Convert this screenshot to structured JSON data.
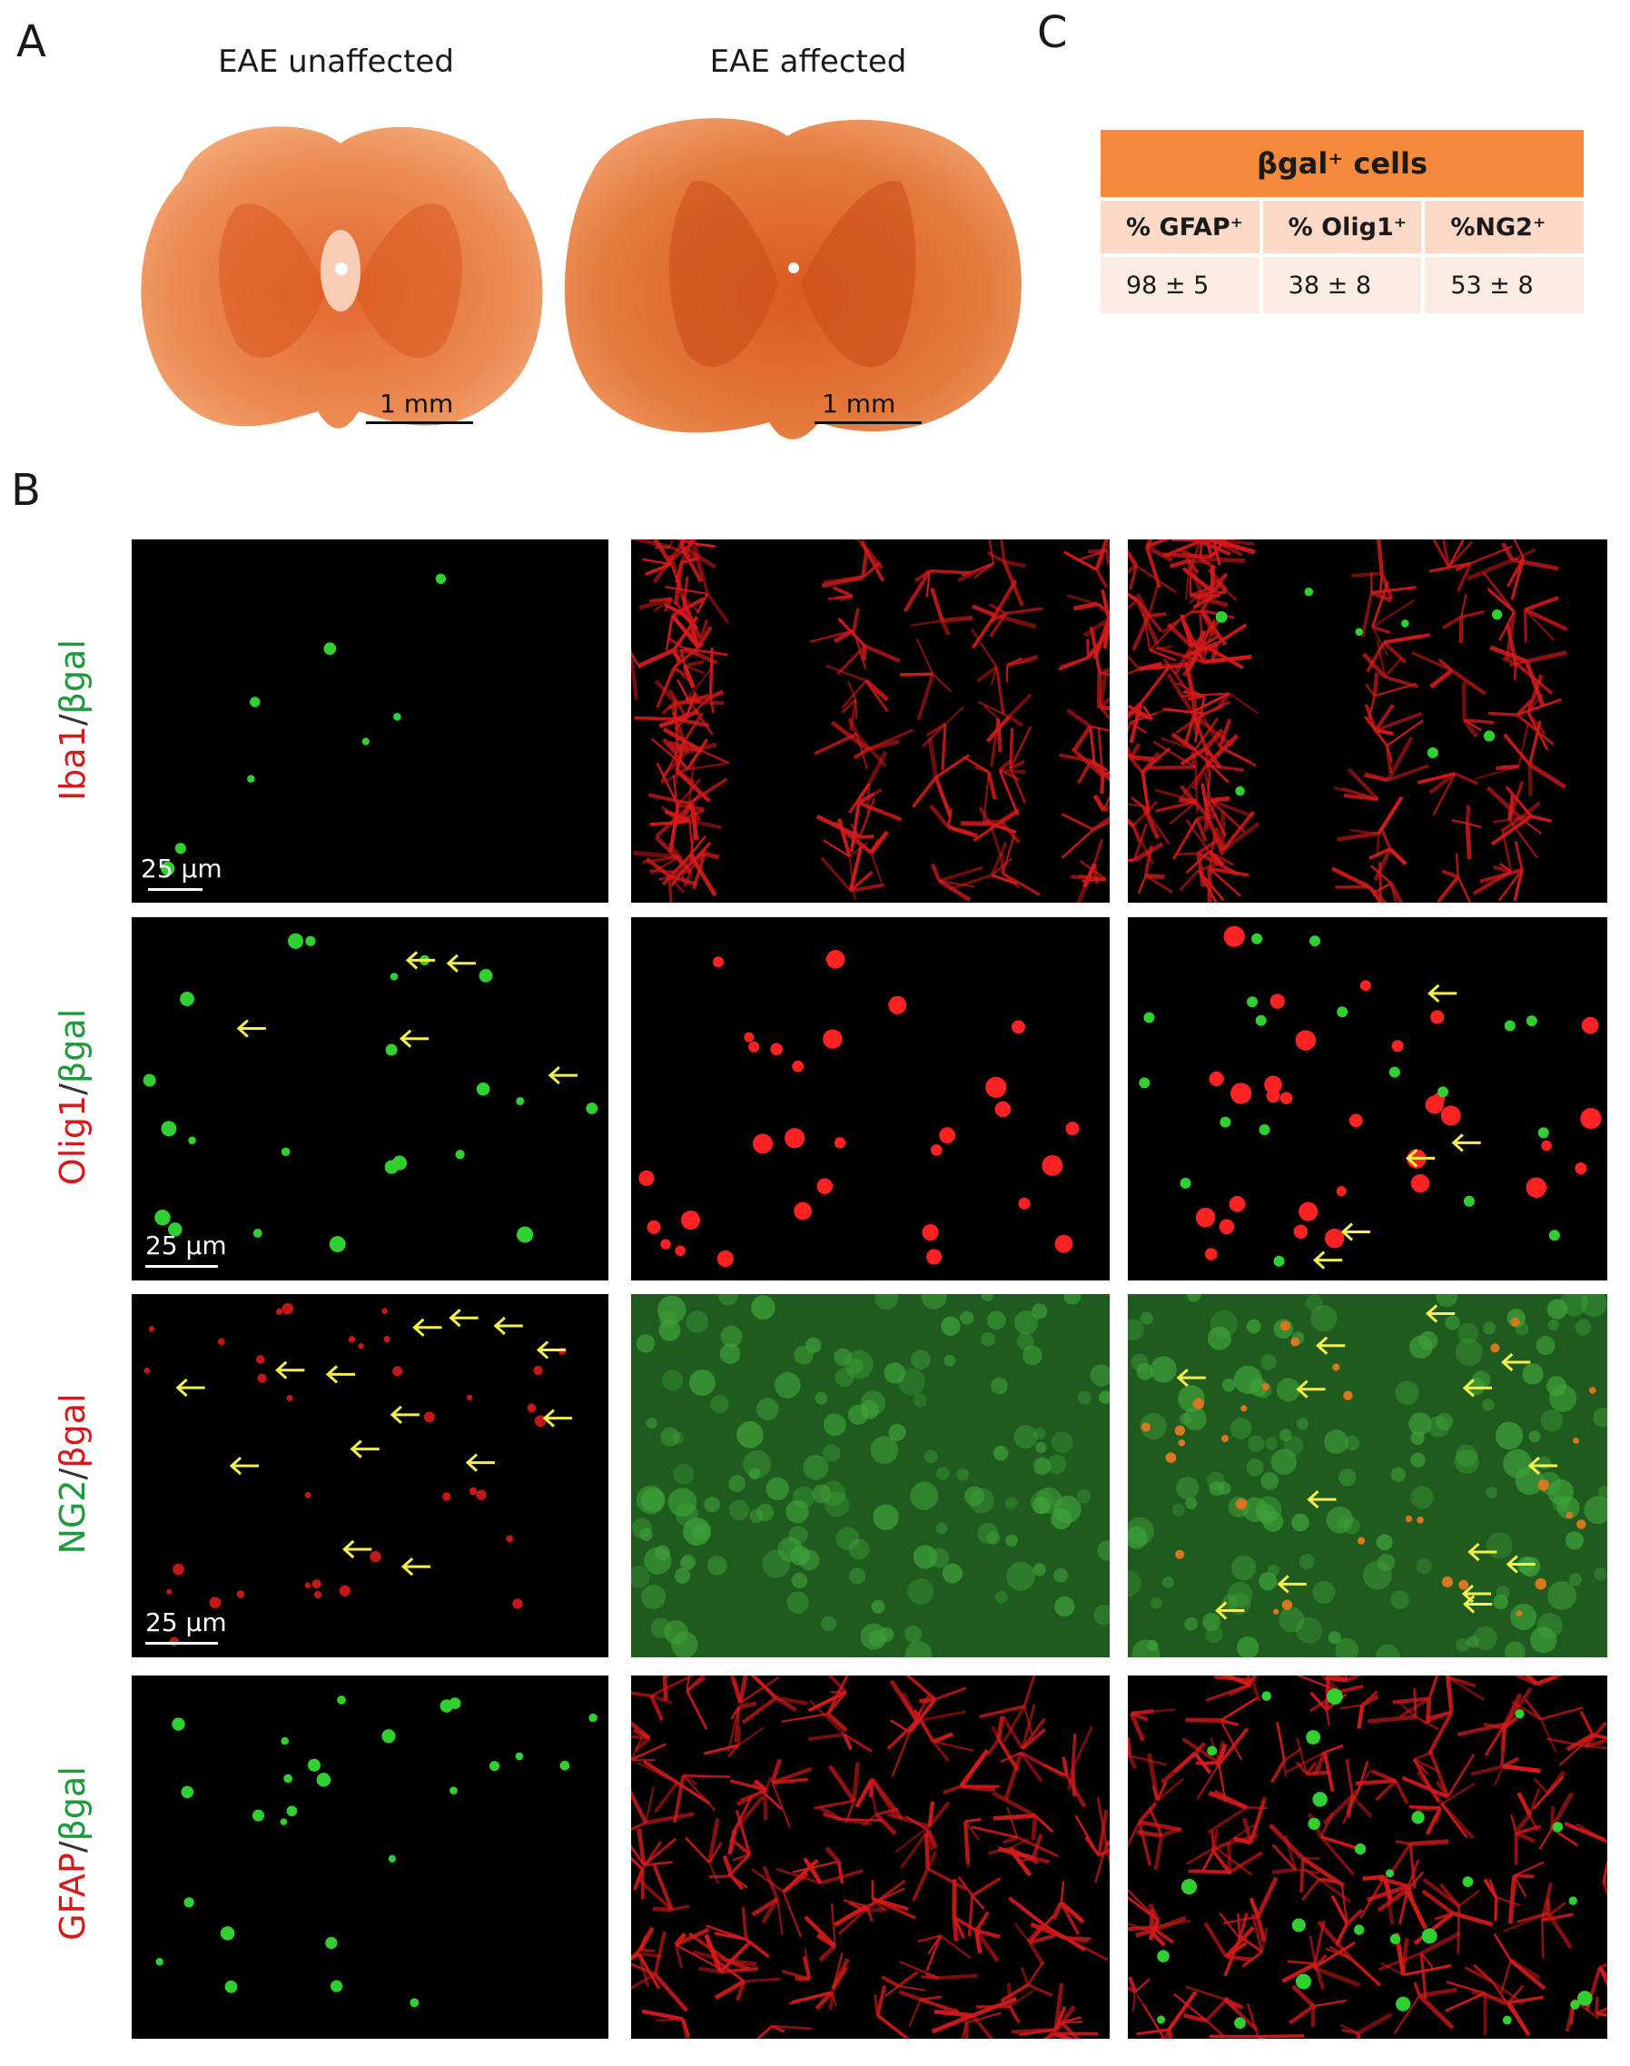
{
  "panels": {
    "a": "A",
    "b": "B",
    "c": "C"
  },
  "panel_a": {
    "left_title": "EAE unaffected",
    "right_title": "EAE affected",
    "scale_left": "1 mm",
    "scale_right": "1 mm"
  },
  "panel_c": {
    "header": "βgal⁺ cells",
    "columns": [
      "% GFAP⁺",
      "% Olig1⁺",
      "%NG2⁺"
    ],
    "values": [
      "98 ± 5",
      "38 ± 8",
      "53 ± 8"
    ]
  },
  "panel_b": {
    "rows": [
      {
        "marker": "Iba1",
        "slash": "/",
        "reporter": "βgal",
        "marker_color": "#d11c1c",
        "reporter_color": "#1f9a3b",
        "scale": "25 µm"
      },
      {
        "marker": "Olig1",
        "slash": "/",
        "reporter": "βgal",
        "marker_color": "#d11c1c",
        "reporter_color": "#1f9a3b",
        "scale": "25 µm"
      },
      {
        "marker": "NG2",
        "slash": "/",
        "reporter": "βgal",
        "marker_color": "#1f9a3b",
        "reporter_color": "#d11c1c",
        "scale": "25 µm"
      },
      {
        "marker": "GFAP",
        "slash": "/",
        "reporter": "βgal",
        "marker_color": "#d11c1c",
        "reporter_color": "#1f9a3b",
        "scale": ""
      }
    ]
  }
}
